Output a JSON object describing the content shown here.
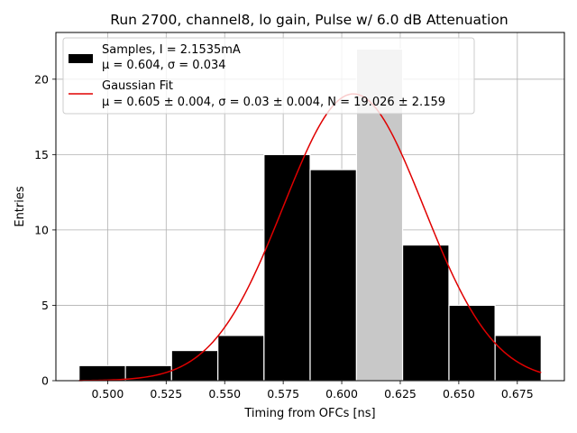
{
  "chart_data": {
    "type": "bar",
    "title": "Run 2700, channel8, lo gain, Pulse w/ 6.0 dB Attenuation",
    "xlabel": "Timing from OFCs [ns]",
    "ylabel": "Entries",
    "xlim": [
      0.4779,
      0.6951
    ],
    "ylim": [
      0,
      23.1
    ],
    "xticks": [
      "0.500",
      "0.525",
      "0.550",
      "0.575",
      "0.600",
      "0.625",
      "0.650",
      "0.675"
    ],
    "xtick_values": [
      0.5,
      0.525,
      0.55,
      0.575,
      0.6,
      0.625,
      0.65,
      0.675
    ],
    "yticks": [
      "0",
      "5",
      "10",
      "15",
      "20"
    ],
    "ytick_values": [
      0,
      5,
      10,
      15,
      20
    ],
    "grid": true,
    "legend_position": "top-left",
    "histogram": {
      "bin_edges": [
        0.4878,
        0.5076,
        0.5273,
        0.5471,
        0.5668,
        0.5865,
        0.6063,
        0.626,
        0.6458,
        0.6655,
        0.6852
      ],
      "counts": [
        1,
        1,
        2,
        3,
        15,
        14,
        22,
        9,
        5,
        3
      ],
      "highlight_bin_index": 6,
      "color": "#000000",
      "highlight_color": "#c8c8c8"
    },
    "fit": {
      "mu": 0.605,
      "sigma": 0.03,
      "N": 19.026,
      "x_range": [
        0.4878,
        0.6852
      ],
      "color": "#e00000"
    },
    "legend": [
      {
        "type": "patch",
        "line1": "Samples, I = 2.1535mA",
        "line2": "μ = 0.604, σ = 0.034"
      },
      {
        "type": "line",
        "line1": "Gaussian Fit",
        "line2": "μ = 0.605 ± 0.004, σ = 0.03 ± 0.004, N = 19.026 ± 2.159"
      }
    ]
  }
}
